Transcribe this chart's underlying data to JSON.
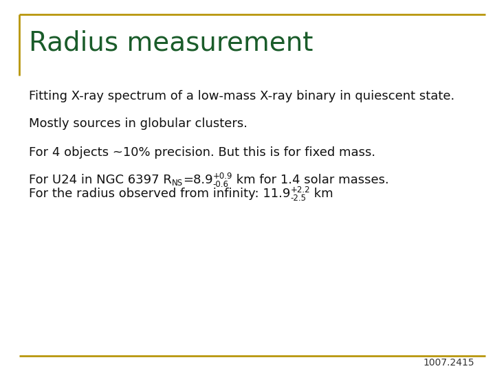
{
  "title": "Radius measurement",
  "title_color": "#1a5c2a",
  "title_fontsize": 28,
  "background_color": "#ffffff",
  "border_color": "#b8960c",
  "footer_text": "1007.2415",
  "footer_color": "#333333",
  "body_color": "#111111",
  "body_fontsize": 13,
  "lines": [
    "Fitting X-ray spectrum of a low-mass X-ray binary in quiescent state.",
    "Mostly sources in globular clusters.",
    "For 4 objects ~10% precision. But this is for fixed mass."
  ],
  "line4_prefix": "For U24 in NGC 6397 R",
  "line4_ns": "NS",
  "line4_mid": "=8.9",
  "line4_sup1": "+0.9",
  "line4_sub1": "-0.6",
  "line4_suffix": " km for 1.4 solar masses.",
  "line5_prefix": "For the radius observed from infinity: 11.9",
  "line5_sup2": "+2.2",
  "line5_sub2": "-2.5",
  "line5_suffix": " km"
}
